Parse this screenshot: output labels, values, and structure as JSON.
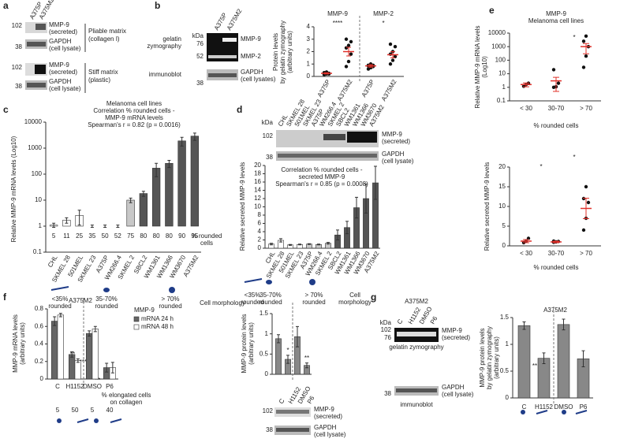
{
  "panel_labels": [
    "a",
    "b",
    "c",
    "d",
    "e",
    "f",
    "g"
  ],
  "blot_texts": [
    "102",
    "MMP-9",
    "(secreted)",
    "GAPDH",
    "(cell lysate)",
    "38",
    "Pliable matrix",
    "(collagen I)",
    "102",
    "MMP-9",
    "(secreted)",
    "GAPDH",
    "(cell lysate)",
    "38",
    "Stiff matrix",
    "(plastic)",
    "kDa",
    "76",
    "52",
    "gelatin",
    "zymography",
    "MMP-9",
    "MMP-2",
    "immunoblot",
    "GAPDH",
    "(cell lysates)",
    "38",
    "kDa",
    "102",
    "MMP-9",
    "(secreted)",
    "38",
    "GAPDH",
    "(cell lysate)",
    "102",
    "MMP-9",
    "(secreted)",
    "38",
    "GAPDH",
    "(cell lysate)",
    "A375M2",
    "kDa",
    "102",
    "76",
    "MMP-9",
    "(secreted)",
    "gelatin zymography",
    "GAPDH",
    "(cell lysate)",
    "38",
    "immunoblot"
  ],
  "chart_data": [
    {
      "type": "dot",
      "ylabel": [
        "Protein levels",
        "by gelatin zymography",
        "(arbitrary units)"
      ],
      "categories": [
        "A375P",
        "A375M2",
        "A375P",
        "A375M2"
      ],
      "values": [
        0.25,
        2.0,
        0.85,
        1.75
      ],
      "errors": [
        0.05,
        0.35,
        0.1,
        0.25
      ],
      "points": [
        [
          0.15,
          0.2,
          0.25,
          0.3,
          0.35,
          0.2,
          0.3
        ],
        [
          0.8,
          1.2,
          1.8,
          2.3,
          2.5,
          2.8,
          3.0
        ],
        [
          0.6,
          0.7,
          0.8,
          0.9,
          1.0,
          0.9,
          0.85
        ],
        [
          1.0,
          1.3,
          1.6,
          1.8,
          2.0,
          2.4,
          2.6
        ]
      ],
      "color": "#e0302a",
      "ylim": [
        0,
        4
      ],
      "yticks": [
        0,
        1,
        2,
        3,
        4
      ],
      "annotations": [
        "MMP-9",
        "MMP-2",
        "****",
        "*"
      ]
    },
    {
      "type": "bar",
      "log": true,
      "title": [
        "Melanoma cell lines",
        "Correlation % rounded cells -",
        "MMP-9 mRNA levels",
        "Spearman's r = 0.82 (p = 0.0016)"
      ],
      "ylabel": [
        "Relative MMP-9 mRNA levels (Log10)"
      ],
      "categories": [
        "CHL",
        "SKMEL 28",
        "501MEL",
        "SKMEL 23",
        "A375P",
        "WM266.4",
        "SKMEL 2",
        "SBCL2",
        "WM1361",
        "WM1366",
        "WM3670",
        "A375M2"
      ],
      "values": [
        1.1,
        1.7,
        2.6,
        1.0,
        1.0,
        1.0,
        10,
        18,
        170,
        260,
        1900,
        2900
      ],
      "errors": [
        0.2,
        0.4,
        1.5,
        0.1,
        0.1,
        0.1,
        2,
        4,
        90,
        80,
        700,
        900
      ],
      "colors": [
        "#ffffff",
        "#ffffff",
        "#ffffff",
        "#ffffff",
        "#c8c8c8",
        "#c8c8c8",
        "#c8c8c8",
        "#555555",
        "#555555",
        "#555555",
        "#555555",
        "#555555"
      ],
      "rounded_cells": [
        5,
        11,
        25,
        35,
        50,
        52,
        75,
        80,
        80,
        80,
        90,
        95
      ],
      "ylim": [
        0.1,
        10000
      ],
      "yticks": [
        0.1,
        1,
        10,
        100,
        1000,
        10000
      ],
      "annotations": [
        "% rounded",
        "cells",
        "<35%",
        "rounded",
        "35-70%",
        "rounded",
        "> 70%",
        "rounded",
        "Cell morphology"
      ]
    },
    {
      "type": "bar",
      "title": [
        "Correlation % rounded cells -",
        "secreted MMP-9",
        "Spearman's r = 0.85 (p = 0.0008)"
      ],
      "ylabel": [
        "Relative secreted MMP-9 levels"
      ],
      "categories": [
        "CHL",
        "SKMEL 28",
        "501MEL",
        "SKMEL 23",
        "A375P",
        "WM266.4",
        "SKMEL 2",
        "SBCL2",
        "WM1361",
        "WM1366",
        "WM3670",
        "A375M2"
      ],
      "values": [
        1.0,
        1.9,
        0.8,
        0.9,
        1.0,
        0.9,
        1.2,
        3.2,
        5.0,
        9.8,
        12,
        15.8
      ],
      "errors": [
        0.2,
        0.4,
        0.1,
        0.1,
        0.1,
        0.1,
        0.2,
        1.2,
        1.5,
        2.5,
        3.5,
        4.0
      ],
      "colors": [
        "#ffffff",
        "#ffffff",
        "#ffffff",
        "#ffffff",
        "#c8c8c8",
        "#c8c8c8",
        "#c8c8c8",
        "#555555",
        "#555555",
        "#555555",
        "#555555",
        "#555555"
      ],
      "ylim": [
        0,
        20
      ],
      "yticks": [
        0,
        2,
        4,
        6,
        8,
        10,
        12,
        14,
        16,
        18,
        20
      ],
      "annotations": [
        "<35%",
        "rounded",
        "35-70%",
        "rounded",
        "> 70%",
        "rounded",
        "Cell",
        "morphology"
      ]
    },
    {
      "type": "dot",
      "log": true,
      "title": [
        "MMP-9",
        "Melanoma cell lines"
      ],
      "ylabel": [
        "Relative MMP-9 mRNA levels",
        "(Log10)"
      ],
      "xlabel": "% rounded cells",
      "categories": [
        "< 30",
        "30-70",
        "> 70"
      ],
      "values": [
        1.6,
        3,
        1000
      ],
      "errors": [
        0.5,
        2.5,
        700
      ],
      "points": [
        [
          1.2,
          1.6,
          2.0
        ],
        [
          1.0,
          1.1,
          2.0,
          20
        ],
        [
          30,
          200,
          1000,
          2500,
          6000
        ]
      ],
      "color": "#e0302a",
      "ylim": [
        0.1,
        10000
      ],
      "yticks": [
        0.1,
        1,
        10,
        100,
        1000,
        10000
      ],
      "annotations": [
        "*"
      ]
    },
    {
      "type": "dot",
      "ylabel": [
        "Relative secreted MMP-9 levels"
      ],
      "xlabel": "% rounded cells",
      "categories": [
        "< 30",
        "30-70",
        "> 70"
      ],
      "values": [
        1.2,
        1.0,
        9.5
      ],
      "errors": [
        0.4,
        0.2,
        2.6
      ],
      "points": [
        [
          0.8,
          1.2,
          1.9
        ],
        [
          0.9,
          1.0,
          1.1,
          1.2
        ],
        [
          4.0,
          7.0,
          11,
          12,
          15
        ]
      ],
      "color": "#e0302a",
      "ylim": [
        0,
        20
      ],
      "yticks": [
        0,
        5,
        10,
        15,
        20
      ],
      "annotations": [
        "*",
        "*"
      ]
    },
    {
      "type": "bar",
      "title": [
        "A375M2"
      ],
      "ylabel": [
        "MMP-9 mRNA levels",
        "(arbitrary units)"
      ],
      "legend_title": "MMP-9",
      "categories": [
        "C",
        "H1152",
        "DMSO",
        "P6"
      ],
      "series": [
        {
          "name": "mRNA 24 h",
          "color": "#666666",
          "values": [
            0.66,
            0.28,
            0.52,
            0.13
          ],
          "errors": [
            0.05,
            0.03,
            0.03,
            0.05
          ]
        },
        {
          "name": "mRNA 48 h",
          "color": "#ffffff",
          "values": [
            0.73,
            0.21,
            0.57,
            0.13
          ],
          "errors": [
            0.02,
            0.02,
            0.03,
            0.06
          ]
        }
      ],
      "ylim": [
        0,
        0.8
      ],
      "yticks": [
        0,
        0.2,
        0.4,
        0.6,
        0.8
      ],
      "elongated_cells": [
        5,
        50,
        5,
        40
      ],
      "annotations": [
        "**",
        "****",
        "**",
        "***",
        "% elongated cells",
        "on collagen"
      ]
    },
    {
      "type": "bar",
      "ylabel": [
        "MMP-9 protein levels",
        "(arbitrary units)"
      ],
      "categories": [
        "C",
        "H1152",
        "DMSO",
        "P6"
      ],
      "values": [
        0.88,
        0.37,
        0.93,
        0.22
      ],
      "errors": [
        0.1,
        0.1,
        0.25,
        0.06
      ],
      "color": "#888888",
      "ylim": [
        0,
        1.5
      ],
      "yticks": [
        0,
        0.5,
        1,
        1.5
      ],
      "annotations": [
        "*",
        "**"
      ]
    },
    {
      "type": "bar",
      "title": [
        "A375M2"
      ],
      "ylabel": [
        "MMP-9 protein levels",
        "by gelatin zymography",
        "(arbitrary units)"
      ],
      "categories": [
        "C",
        "H1152",
        "DMSO",
        "P6"
      ],
      "values": [
        1.35,
        0.74,
        1.37,
        0.73
      ],
      "errors": [
        0.07,
        0.1,
        0.1,
        0.15
      ],
      "color": "#888888",
      "ylim": [
        0,
        1.5
      ],
      "yticks": [
        0,
        0.5,
        1,
        1.5
      ],
      "annotations": [
        "**",
        "*"
      ]
    }
  ]
}
